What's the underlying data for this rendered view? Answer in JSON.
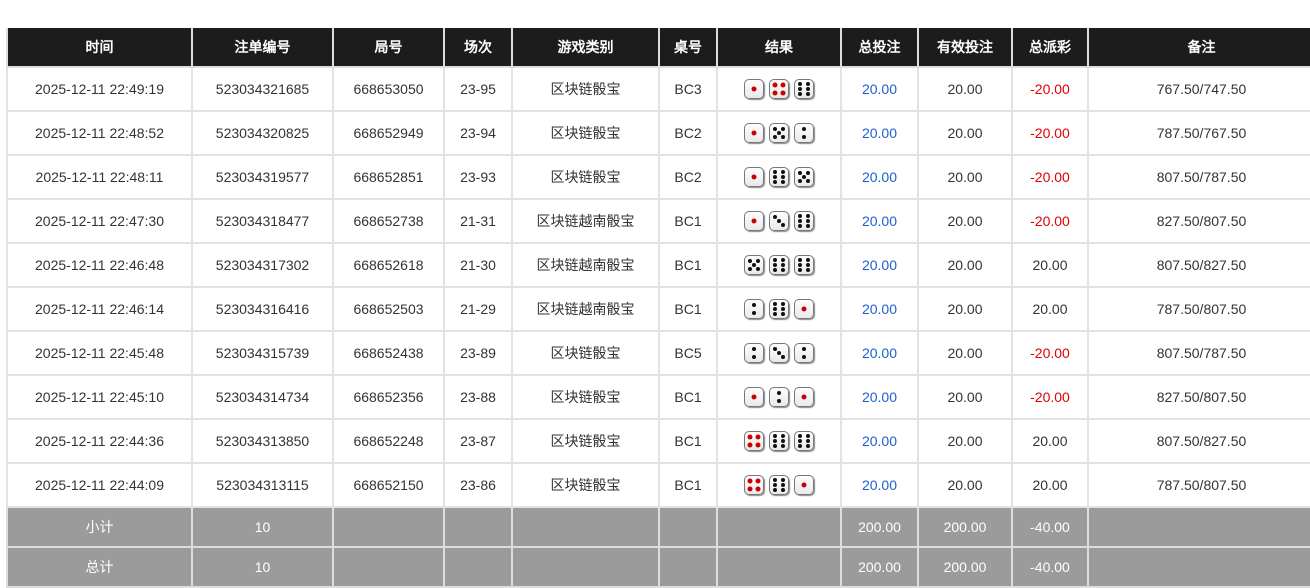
{
  "headers": [
    "时间",
    "注单编号",
    "局号",
    "场次",
    "游戏类别",
    "桌号",
    "结果",
    "总投注",
    "有效投注",
    "总派彩",
    "备注"
  ],
  "rows": [
    {
      "time": "2025-12-11 22:49:19",
      "bet_id": "523034321685",
      "round": "668653050",
      "session": "23-95",
      "game": "区块链骰宝",
      "table": "BC3",
      "dice": [
        1,
        4,
        6
      ],
      "total_bet": "20.00",
      "valid_bet": "20.00",
      "payout": "-20.00",
      "note": "767.50/747.50"
    },
    {
      "time": "2025-12-11 22:48:52",
      "bet_id": "523034320825",
      "round": "668652949",
      "session": "23-94",
      "game": "区块链骰宝",
      "table": "BC2",
      "dice": [
        1,
        5,
        2
      ],
      "total_bet": "20.00",
      "valid_bet": "20.00",
      "payout": "-20.00",
      "note": "787.50/767.50"
    },
    {
      "time": "2025-12-11 22:48:11",
      "bet_id": "523034319577",
      "round": "668652851",
      "session": "23-93",
      "game": "区块链骰宝",
      "table": "BC2",
      "dice": [
        1,
        6,
        5
      ],
      "total_bet": "20.00",
      "valid_bet": "20.00",
      "payout": "-20.00",
      "note": "807.50/787.50"
    },
    {
      "time": "2025-12-11 22:47:30",
      "bet_id": "523034318477",
      "round": "668652738",
      "session": "21-31",
      "game": "区块链越南骰宝",
      "table": "BC1",
      "dice": [
        1,
        3,
        6
      ],
      "total_bet": "20.00",
      "valid_bet": "20.00",
      "payout": "-20.00",
      "note": "827.50/807.50"
    },
    {
      "time": "2025-12-11 22:46:48",
      "bet_id": "523034317302",
      "round": "668652618",
      "session": "21-30",
      "game": "区块链越南骰宝",
      "table": "BC1",
      "dice": [
        5,
        6,
        6
      ],
      "total_bet": "20.00",
      "valid_bet": "20.00",
      "payout": "20.00",
      "note": "807.50/827.50"
    },
    {
      "time": "2025-12-11 22:46:14",
      "bet_id": "523034316416",
      "round": "668652503",
      "session": "21-29",
      "game": "区块链越南骰宝",
      "table": "BC1",
      "dice": [
        2,
        6,
        1
      ],
      "total_bet": "20.00",
      "valid_bet": "20.00",
      "payout": "20.00",
      "note": "787.50/807.50"
    },
    {
      "time": "2025-12-11 22:45:48",
      "bet_id": "523034315739",
      "round": "668652438",
      "session": "23-89",
      "game": "区块链骰宝",
      "table": "BC5",
      "dice": [
        2,
        3,
        2
      ],
      "total_bet": "20.00",
      "valid_bet": "20.00",
      "payout": "-20.00",
      "note": "807.50/787.50"
    },
    {
      "time": "2025-12-11 22:45:10",
      "bet_id": "523034314734",
      "round": "668652356",
      "session": "23-88",
      "game": "区块链骰宝",
      "table": "BC1",
      "dice": [
        1,
        2,
        1
      ],
      "total_bet": "20.00",
      "valid_bet": "20.00",
      "payout": "-20.00",
      "note": "827.50/807.50"
    },
    {
      "time": "2025-12-11 22:44:36",
      "bet_id": "523034313850",
      "round": "668652248",
      "session": "23-87",
      "game": "区块链骰宝",
      "table": "BC1",
      "dice": [
        4,
        6,
        6
      ],
      "total_bet": "20.00",
      "valid_bet": "20.00",
      "payout": "20.00",
      "note": "807.50/827.50"
    },
    {
      "time": "2025-12-11 22:44:09",
      "bet_id": "523034313115",
      "round": "668652150",
      "session": "23-86",
      "game": "区块链骰宝",
      "table": "BC1",
      "dice": [
        4,
        6,
        1
      ],
      "total_bet": "20.00",
      "valid_bet": "20.00",
      "payout": "20.00",
      "note": "787.50/807.50"
    }
  ],
  "subtotal": {
    "label": "小计",
    "count": "10",
    "total_bet": "200.00",
    "valid_bet": "200.00",
    "payout": "-40.00"
  },
  "total": {
    "label": "总计",
    "count": "10",
    "total_bet": "200.00",
    "valid_bet": "200.00",
    "payout": "-40.00"
  },
  "colors": {
    "header_bg": "#1c1c1c",
    "bet_blue": "#1b5fd1",
    "loss_red": "#e00000",
    "footer_bg": "#9b9b9b"
  }
}
